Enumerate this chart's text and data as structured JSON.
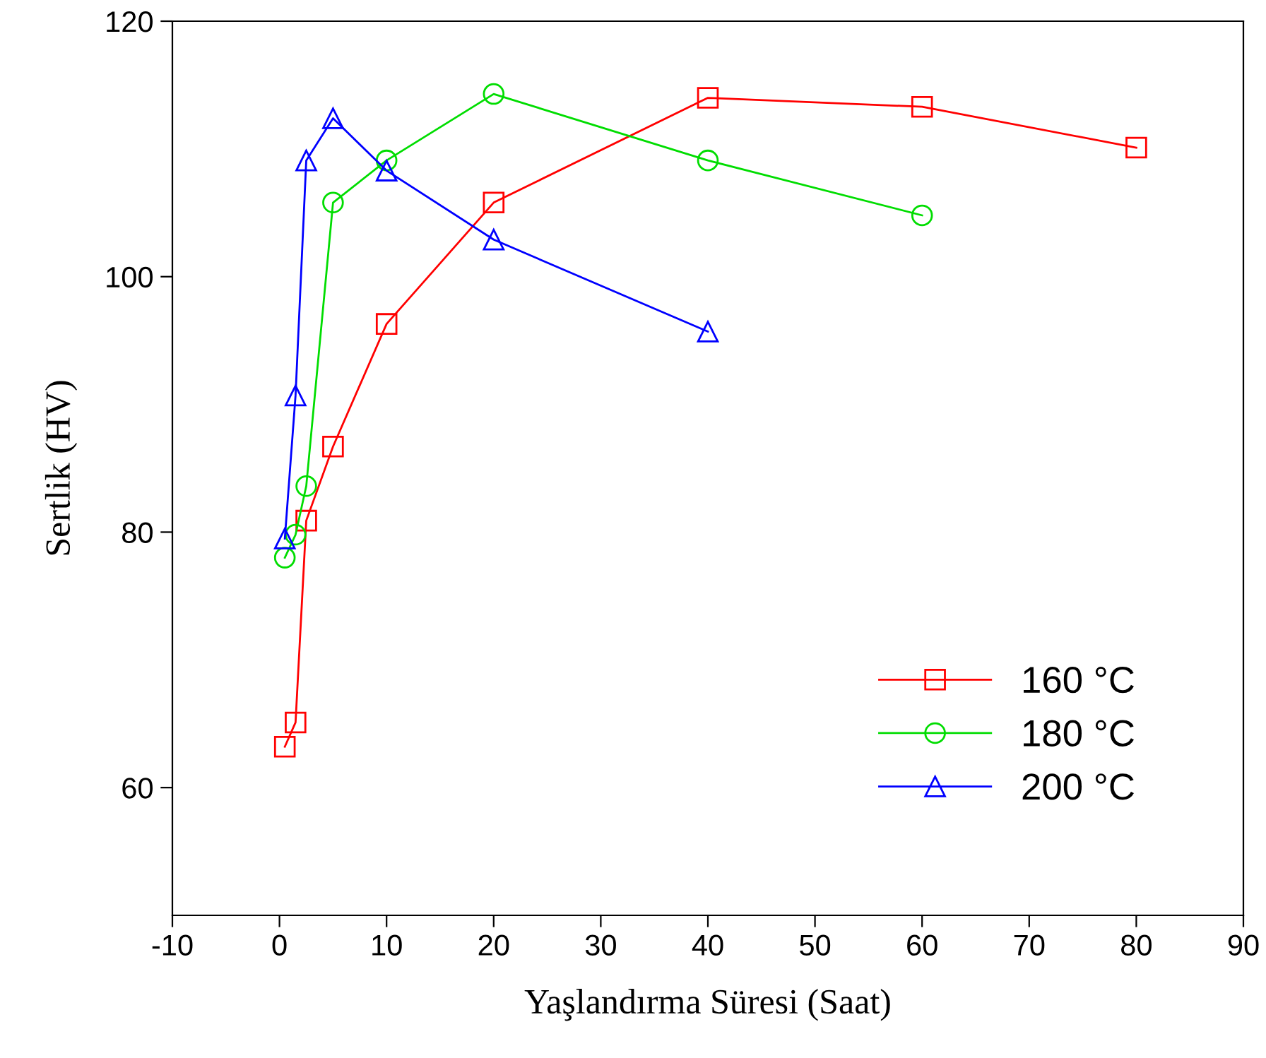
{
  "chart_data": {
    "type": "line",
    "xlabel": "Yaşlandırma Süresi (Saat)",
    "ylabel": "Sertlik (HV)",
    "xlim": [
      -10,
      90
    ],
    "xticks": [
      -10,
      0,
      10,
      20,
      30,
      40,
      50,
      60,
      70,
      80,
      90
    ],
    "ylim": [
      50,
      120
    ],
    "yticks": [
      60,
      80,
      100,
      120
    ],
    "grid": false,
    "legend": "bottom right",
    "series": [
      {
        "name": "160 °C",
        "color": "#ff0000",
        "marker": "square",
        "x": [
          0.5,
          1.5,
          2.5,
          5,
          10,
          20,
          40,
          60,
          80
        ],
        "values": [
          63.2,
          65.1,
          80.9,
          86.7,
          96.3,
          105.8,
          114.0,
          113.3,
          110.1
        ]
      },
      {
        "name": "180 °C",
        "color": "#00dd00",
        "marker": "circle",
        "x": [
          0.5,
          1.5,
          2.5,
          5,
          10,
          20,
          40,
          60
        ],
        "values": [
          78.0,
          79.8,
          83.6,
          105.8,
          109.1,
          114.3,
          109.1,
          104.8
        ]
      },
      {
        "name": "200 °C",
        "color": "#0000ff",
        "marker": "triangle",
        "x": [
          0.5,
          1.5,
          2.5,
          5,
          10,
          20,
          40
        ],
        "values": [
          79.5,
          90.7,
          109.1,
          112.4,
          108.3,
          102.9,
          95.7
        ]
      }
    ]
  }
}
